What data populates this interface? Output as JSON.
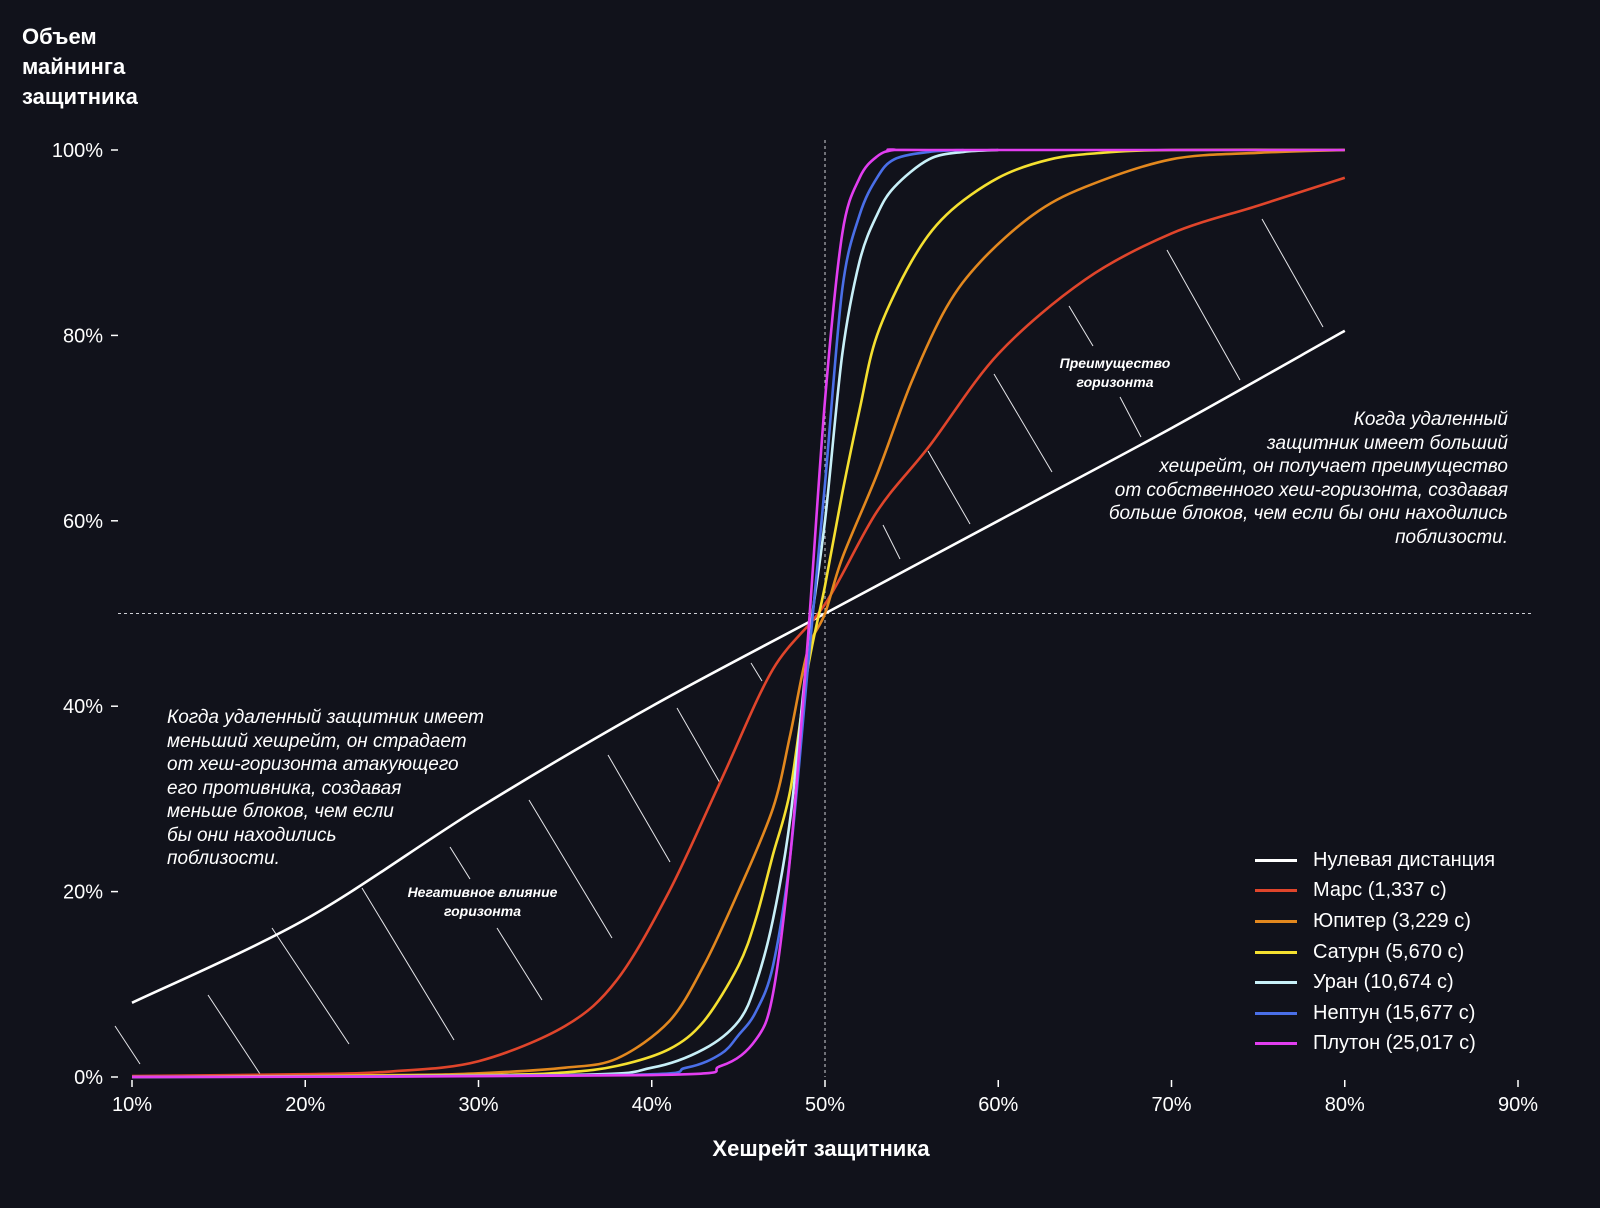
{
  "chart_data": {
    "type": "line",
    "ylabel": "Объем\nмайнинга\nзащитника",
    "xlabel": "Хешрейт защитника",
    "xlim": [
      9,
      91
    ],
    "ylim": [
      0,
      100
    ],
    "x_ticks": [
      "10%",
      "20%",
      "30%",
      "40%",
      "50%",
      "60%",
      "70%",
      "80%",
      "90%"
    ],
    "y_ticks": [
      "0%",
      "20%",
      "40%",
      "60%",
      "80%",
      "100%"
    ],
    "reference_lines": {
      "x": 50,
      "y": 50
    },
    "series": [
      {
        "name": "Нулевая дистанция",
        "color": "#ffffff",
        "x": [
          10,
          20,
          30,
          40,
          50,
          60,
          70,
          80
        ],
        "y": [
          8,
          17,
          29,
          40,
          50,
          60,
          70,
          80.5
        ]
      },
      {
        "name": "Марс (1,337 с)",
        "color": "#e0452b",
        "x": [
          10,
          20,
          25,
          30,
          35,
          38,
          41,
          44,
          47,
          50,
          53,
          56,
          60,
          65,
          70,
          75,
          80
        ],
        "y": [
          0.1,
          0.3,
          0.6,
          1.7,
          5.5,
          10.5,
          20,
          32,
          44,
          51,
          61,
          68,
          78,
          86,
          91,
          94,
          97
        ]
      },
      {
        "name": "Юпитер (3,229 с)",
        "color": "#e3881e",
        "x": [
          10,
          25,
          30,
          35,
          38,
          41,
          43,
          45,
          47,
          48,
          49,
          50,
          51,
          53,
          55,
          57,
          59,
          62,
          65,
          70,
          75,
          80
        ],
        "y": [
          0,
          0.2,
          0.4,
          1,
          2,
          6,
          12,
          20,
          29,
          37,
          46,
          50,
          56,
          65,
          75,
          83,
          88,
          93,
          96,
          99,
          99.7,
          100
        ]
      },
      {
        "name": "Сатурн (5,670 с)",
        "color": "#f5e030",
        "x": [
          10,
          30,
          35,
          38,
          41,
          43,
          45,
          46,
          47,
          48,
          49,
          50,
          51,
          52,
          53,
          55,
          57,
          60,
          63,
          66,
          70,
          80
        ],
        "y": [
          0,
          0.2,
          0.5,
          1.2,
          3,
          6,
          12,
          17,
          24,
          31,
          44,
          53,
          63,
          72,
          80,
          88,
          93,
          97,
          99,
          99.7,
          100,
          100
        ]
      },
      {
        "name": "Уран (10,674 с)",
        "color": "#c8f0f8",
        "x": [
          10,
          35,
          40,
          43,
          45,
          46,
          47,
          48,
          49,
          50,
          51,
          52,
          53,
          54,
          56,
          58,
          60
        ],
        "y": [
          0,
          0.2,
          1,
          3,
          6,
          10,
          17,
          28,
          46,
          60,
          78,
          88,
          93,
          96,
          99,
          99.8,
          100
        ]
      },
      {
        "name": "Нептун (15,677 с)",
        "color": "#4a6fe8",
        "x": [
          10,
          38,
          42,
          44,
          45,
          46,
          47,
          48,
          49,
          50,
          51,
          52,
          53,
          54,
          56,
          58
        ],
        "y": [
          0,
          0.2,
          1,
          2.5,
          4.5,
          7,
          12,
          24,
          44,
          64,
          85,
          93,
          97,
          99,
          99.8,
          100
        ]
      },
      {
        "name": "Плутон (25,017 с)",
        "color": "#e23ef0",
        "x": [
          10,
          40,
          44,
          46,
          47,
          48,
          49,
          50,
          51,
          52,
          53,
          54,
          56,
          80
        ],
        "y": [
          0,
          0.2,
          1.2,
          4,
          9,
          24,
          47,
          73,
          91,
          97,
          99.3,
          100,
          100,
          100
        ]
      }
    ],
    "annotations": {
      "right_note": "Когда удаленный\nзащитник имеет больший\nхешрейт, он получает преимущество\nот собственного хеш-горизонта, создавая\nбольше блоков, чем если бы они находились\nпоблизости.",
      "left_note": "Когда удаленный защитник имеет\nменьший хешрейт, он страдает\nот хеш-горизонта атакующего\nего противника, создавая\nменьше блоков, чем если\nбы они находились\nпоблизости.",
      "advantage_label": "Преимущество\nгоризонта",
      "negative_label": "Негативное влияние\nгоризонта"
    },
    "legend_position": "bottom-right",
    "grid": false
  }
}
